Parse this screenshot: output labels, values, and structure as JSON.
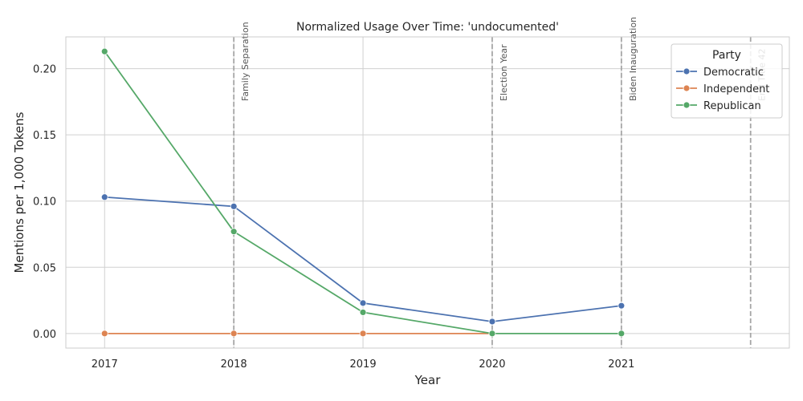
{
  "chart_data": {
    "type": "line",
    "title": "Normalized Usage Over Time: 'undocumented'",
    "xlabel": "Year",
    "ylabel": "Mentions per 1,000 Tokens",
    "x": [
      2017,
      2018,
      2019,
      2020,
      2021
    ],
    "x_tick_labels": [
      "2017",
      "2018",
      "2019",
      "2020",
      "2021"
    ],
    "xlim": [
      2016.7,
      2022.3
    ],
    "ylim": [
      -0.011,
      0.224
    ],
    "y_ticks": [
      0.0,
      0.05,
      0.1,
      0.15,
      0.2
    ],
    "y_tick_labels": [
      "0.00",
      "0.05",
      "0.10",
      "0.15",
      "0.20"
    ],
    "grid": true,
    "legend": {
      "title": "Party",
      "placement": "top-right"
    },
    "series": [
      {
        "name": "Democratic",
        "color": "#4c72b0",
        "points": [
          [
            2017,
            0.103
          ],
          [
            2018,
            0.096
          ],
          [
            2019,
            0.023
          ],
          [
            2020,
            0.009
          ],
          [
            2021,
            0.021
          ]
        ]
      },
      {
        "name": "Independent",
        "color": "#dd8452",
        "points": [
          [
            2017,
            0.0
          ],
          [
            2018,
            0.0
          ],
          [
            2019,
            0.0
          ],
          [
            2020,
            0.0
          ]
        ]
      },
      {
        "name": "Republican",
        "color": "#55a868",
        "points": [
          [
            2017,
            0.213
          ],
          [
            2018,
            0.077
          ],
          [
            2019,
            0.016
          ],
          [
            2020,
            0.0
          ],
          [
            2021,
            0.0
          ]
        ]
      }
    ],
    "annotations": [
      {
        "x": 2018,
        "label": "Family Separation"
      },
      {
        "x": 2020,
        "label": "Election Year"
      },
      {
        "x": 2021,
        "label": "Biden Inauguration"
      },
      {
        "x": 2022,
        "label": "End Title 42"
      }
    ]
  }
}
